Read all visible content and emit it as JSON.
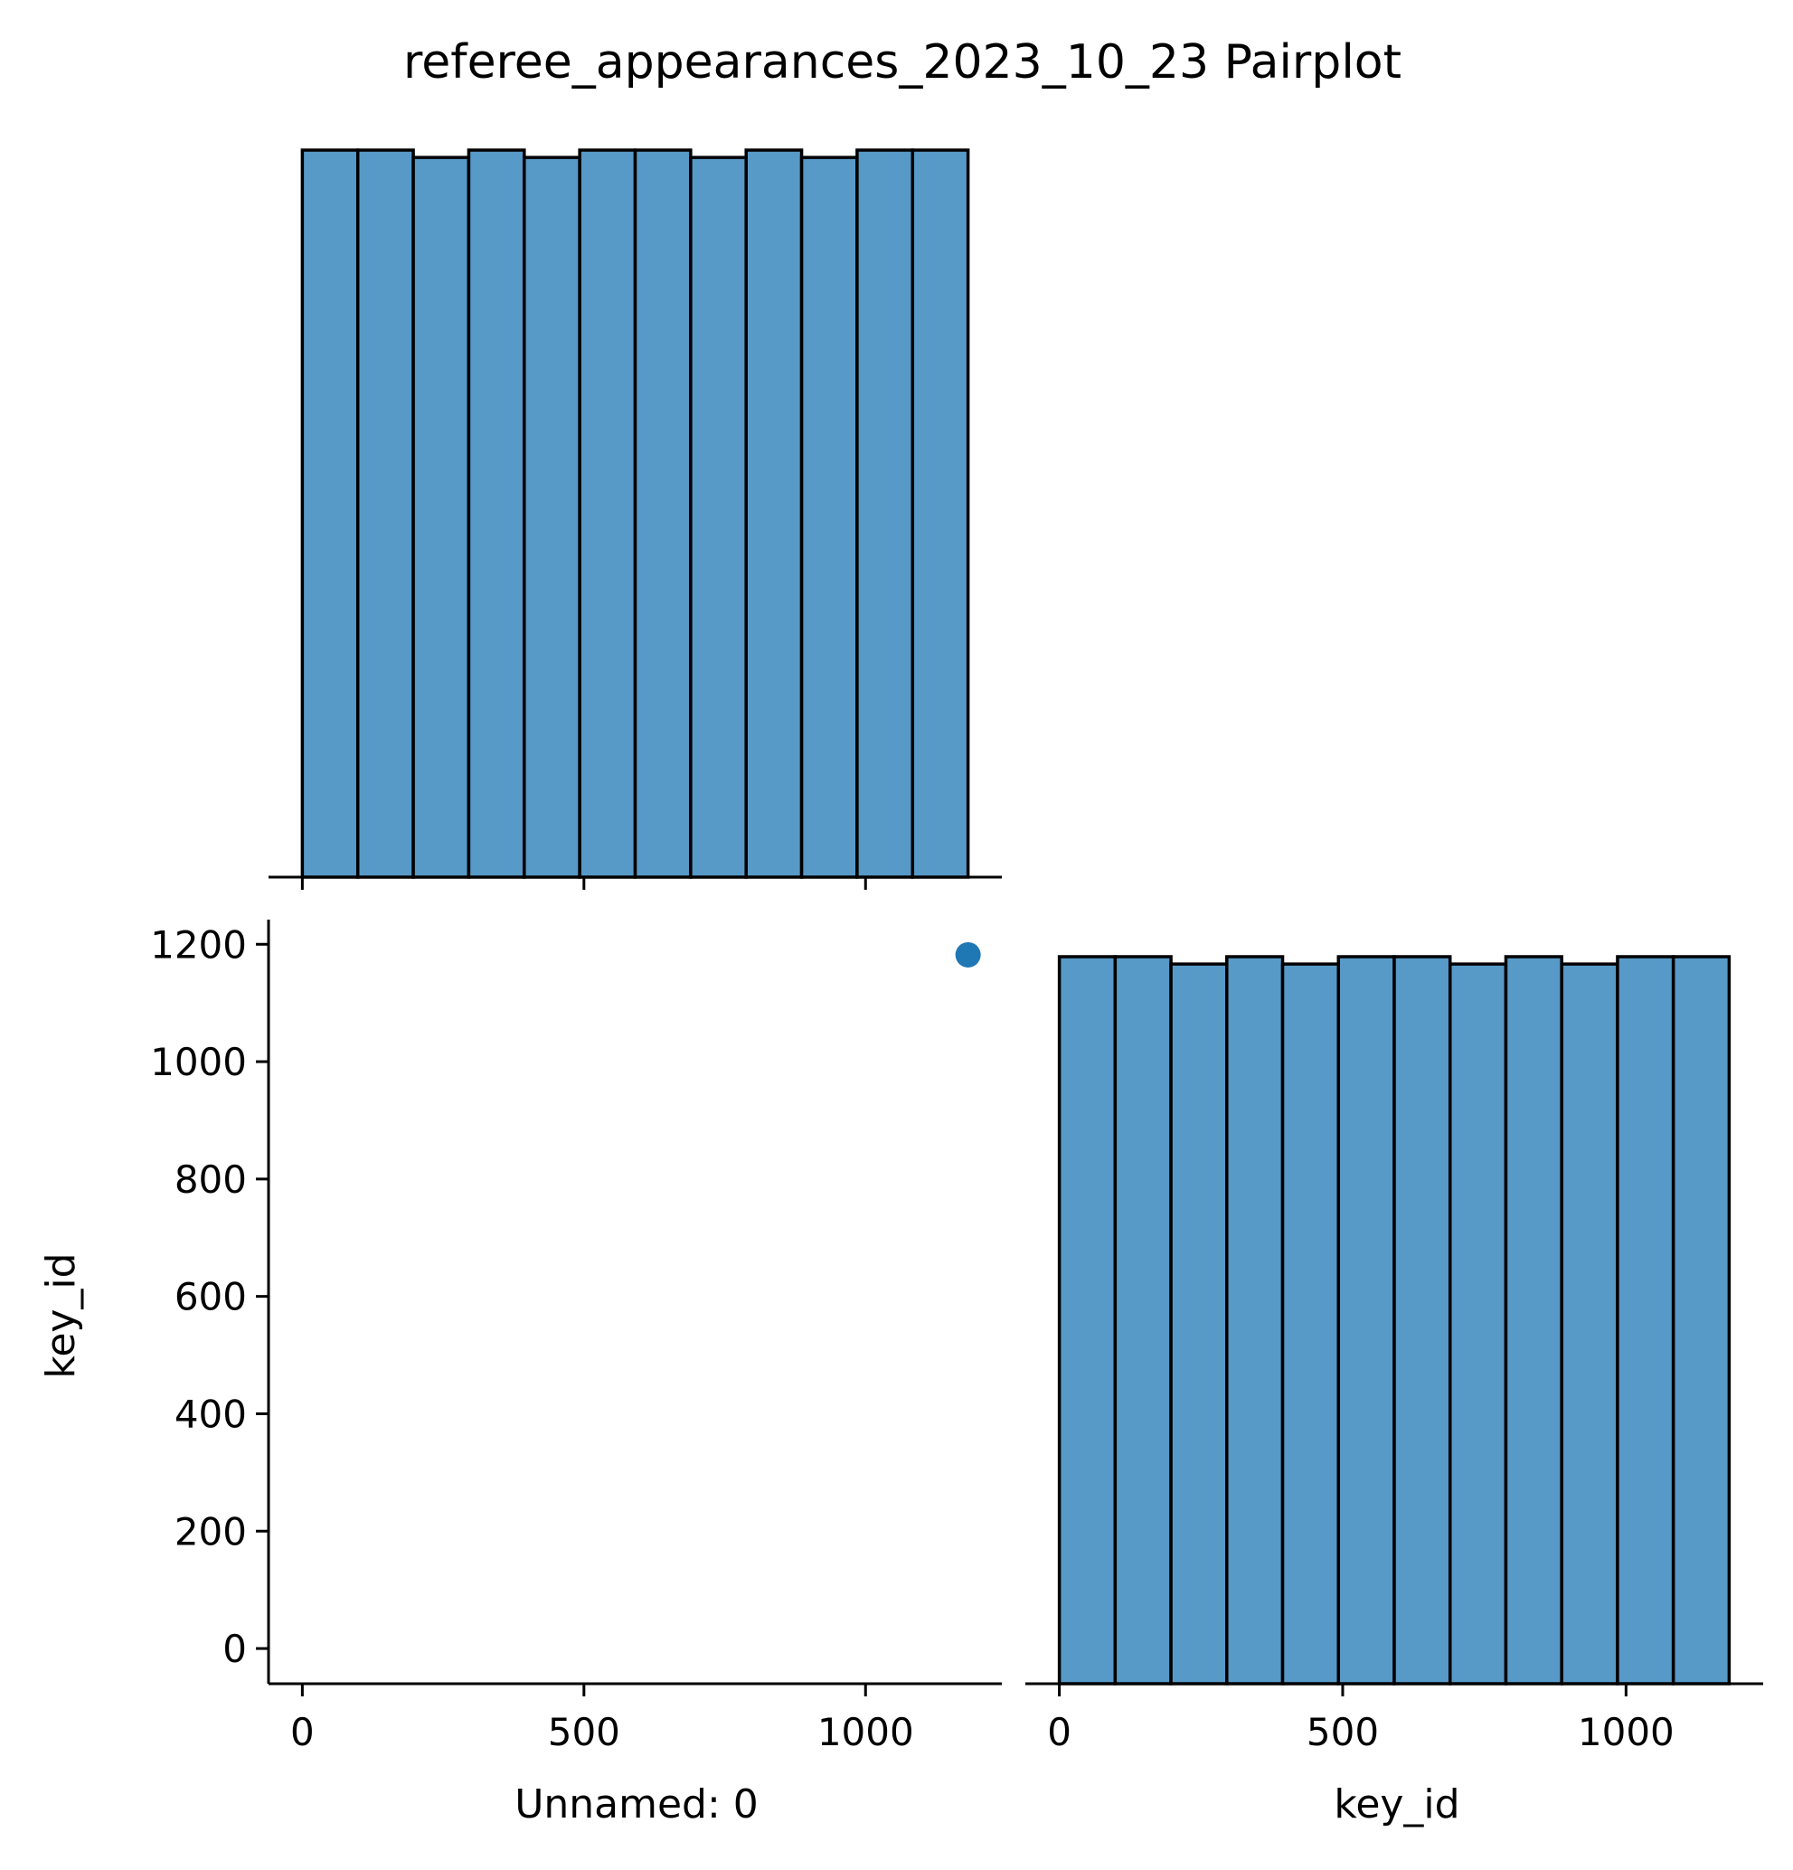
{
  "title": "referee_appearances_2023_10_23 Pairplot",
  "colors": {
    "bar_fill": "#5799c7",
    "bar_edge": "#000000",
    "point": "#1f77b4",
    "axis": "#000000"
  },
  "chart_data": [
    {
      "type": "bar",
      "panel": "top-left diagonal histogram",
      "variable": "Unnamed: 0",
      "bin_edges": [
        0,
        98.5,
        197,
        295.5,
        394,
        492.5,
        591,
        689.5,
        788,
        886.5,
        985,
        1083.5,
        1182
      ],
      "values": [
        99,
        99,
        98,
        99,
        98,
        99,
        99,
        98,
        99,
        98,
        99,
        99
      ],
      "xlim": [
        -60,
        1242
      ],
      "xticks": [
        0,
        500,
        1000
      ],
      "yaxis_shown": false,
      "grid": false
    },
    {
      "type": "scatter",
      "panel": "bottom-left",
      "x": [
        1182
      ],
      "y": [
        1182
      ],
      "xlabel": "Unnamed: 0",
      "ylabel": "key_id",
      "xlim": [
        -60,
        1242
      ],
      "ylim": [
        -60,
        1242
      ],
      "xticks": [
        "0",
        "500",
        "1000"
      ],
      "yticks": [
        "0",
        "200",
        "400",
        "600",
        "800",
        "1000",
        "1200"
      ],
      "grid": false
    },
    {
      "type": "bar",
      "panel": "bottom-right diagonal histogram",
      "variable": "key_id",
      "bin_edges": [
        0,
        98.5,
        197,
        295.5,
        394,
        492.5,
        591,
        689.5,
        788,
        886.5,
        985,
        1083.5,
        1182
      ],
      "values": [
        99,
        99,
        98,
        99,
        98,
        99,
        99,
        98,
        99,
        98,
        99,
        99
      ],
      "xlabel": "key_id",
      "xlim": [
        -60,
        1242
      ],
      "xticks": [
        "0",
        "500",
        "1000"
      ],
      "yaxis_shown": false,
      "grid": false
    }
  ]
}
